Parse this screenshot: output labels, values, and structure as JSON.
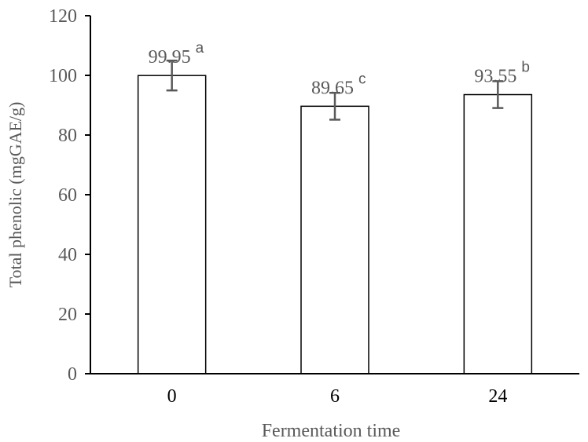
{
  "chart_data": {
    "type": "bar",
    "title": "",
    "xlabel": "Fermentation time",
    "ylabel": "Total phenolic (mgGAE/g)",
    "categories": [
      "0",
      "6",
      "24"
    ],
    "values": [
      99.95,
      89.65,
      93.55
    ],
    "errors": [
      5,
      4.5,
      4.5
    ],
    "data_labels": [
      "99.95",
      "89.65",
      "93.55"
    ],
    "significance_letters": [
      "a",
      "c",
      "b"
    ],
    "ylim": [
      0,
      120
    ],
    "yticks": [
      "0",
      "20",
      "40",
      "60",
      "80",
      "100",
      "120"
    ],
    "grid": false,
    "legend": "none",
    "colors": {
      "bar_fill": "#ffffff",
      "bar_stroke": "#000000",
      "axis": "#000000",
      "text": "#595959",
      "error_bar": "#595959"
    }
  }
}
